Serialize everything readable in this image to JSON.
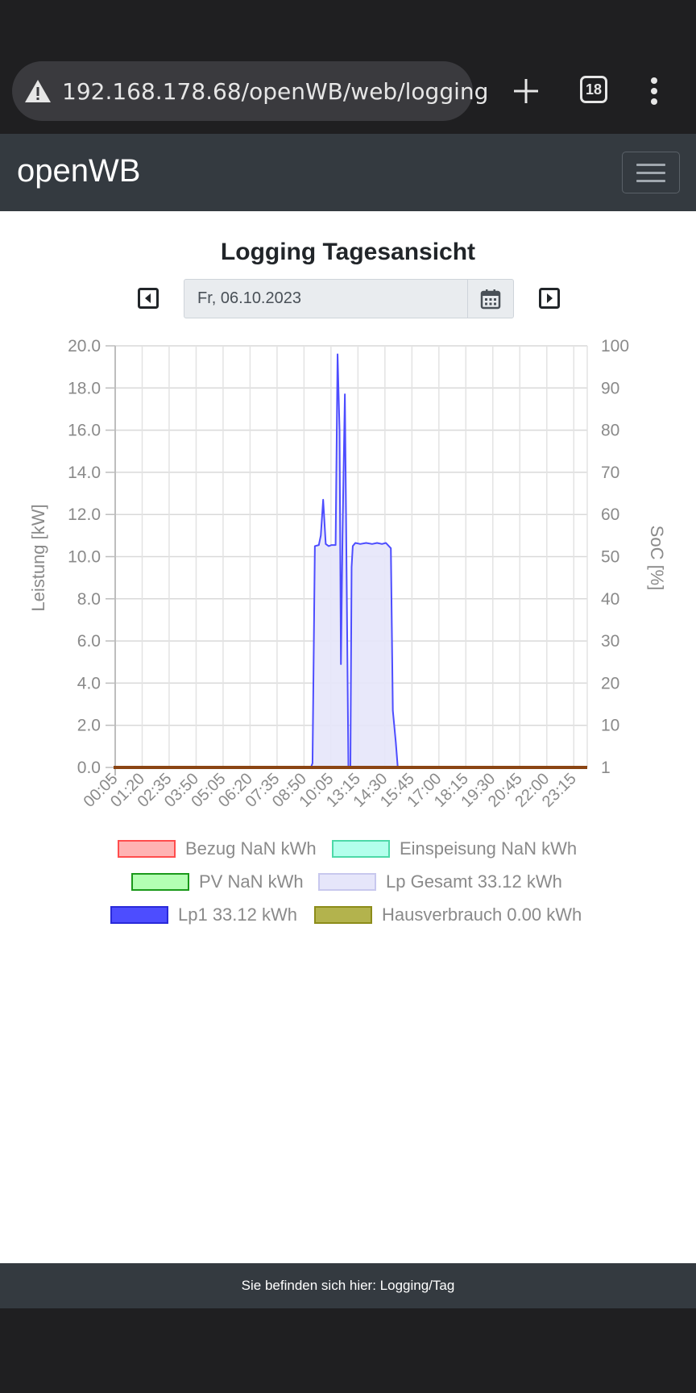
{
  "browser": {
    "url": "192.168.178.68/openWB/web/logging",
    "tab_count": "18"
  },
  "app": {
    "brand": "openWB"
  },
  "page": {
    "title": "Logging Tagesansicht",
    "date_value": "Fr, 06.10.2023"
  },
  "footer": {
    "text": "Sie befinden sich hier: Logging/Tag"
  },
  "legend": [
    {
      "label": "Bezug NaN kWh",
      "fill": "#ffb3b3",
      "border": "#ff4d4d"
    },
    {
      "label": "Einspeisung NaN kWh",
      "fill": "#b3ffec",
      "border": "#4dd9a8"
    },
    {
      "label": "PV NaN kWh",
      "fill": "#b3ffb3",
      "border": "#1a991a"
    },
    {
      "label": "Lp Gesamt 33.12 kWh",
      "fill": "#e6e6fa",
      "border": "#c8c8ee"
    },
    {
      "label": "Lp1 33.12 kWh",
      "fill": "#4d4dff",
      "border": "#2a2ad9"
    },
    {
      "label": "Hausverbrauch 0.00 kWh",
      "fill": "#b3b34d",
      "border": "#8c8c1a"
    }
  ],
  "chart_data": {
    "type": "line",
    "ylabel": "Leistung [kW]",
    "y2label": "SoC [%]",
    "ylim": [
      0,
      20
    ],
    "y_ticks": [
      "0.0",
      "2.0",
      "4.0",
      "6.0",
      "8.0",
      "10.0",
      "12.0",
      "14.0",
      "16.0",
      "18.0",
      "20.0"
    ],
    "y2_ticks": [
      "1",
      "10",
      "20",
      "30",
      "40",
      "50",
      "60",
      "70",
      "80",
      "90",
      "100"
    ],
    "x_ticks": [
      "00:05",
      "01:20",
      "02:35",
      "03:50",
      "05:05",
      "06:20",
      "07:35",
      "08:50",
      "10:05",
      "13:15",
      "14:30",
      "15:45",
      "17:00",
      "18:15",
      "19:30",
      "20:45",
      "22:00",
      "23:15"
    ],
    "grid": true,
    "series": [
      {
        "name": "Lp1 33.12 kWh",
        "color": "#4d4dff",
        "fill": "#e6e6fa",
        "points": [
          [
            10.0,
            0.0
          ],
          [
            10.08,
            0.2
          ],
          [
            10.2,
            10.5
          ],
          [
            10.4,
            10.55
          ],
          [
            10.5,
            11.0
          ],
          [
            10.62,
            12.7
          ],
          [
            10.75,
            10.6
          ],
          [
            10.9,
            10.5
          ],
          [
            11.05,
            10.55
          ],
          [
            11.25,
            10.55
          ],
          [
            11.35,
            19.6
          ],
          [
            11.45,
            16.0
          ],
          [
            11.52,
            4.9
          ],
          [
            11.6,
            11.0
          ],
          [
            11.72,
            17.7
          ],
          [
            11.82,
            8.0
          ],
          [
            11.9,
            0.0
          ],
          [
            12.0,
            0.0
          ],
          [
            12.06,
            9.5
          ],
          [
            12.12,
            10.5
          ],
          [
            12.25,
            10.65
          ],
          [
            12.5,
            10.6
          ],
          [
            12.8,
            10.65
          ],
          [
            13.1,
            10.6
          ],
          [
            13.35,
            10.65
          ],
          [
            13.6,
            10.6
          ],
          [
            13.8,
            10.65
          ],
          [
            13.95,
            10.5
          ],
          [
            14.05,
            10.4
          ],
          [
            14.15,
            2.7
          ],
          [
            14.3,
            1.2
          ],
          [
            14.4,
            0.0
          ]
        ]
      },
      {
        "name": "Hausverbrauch 0.00 kWh",
        "color": "#8b4513",
        "points": [
          [
            0,
            0
          ],
          [
            24,
            0
          ]
        ]
      }
    ]
  }
}
